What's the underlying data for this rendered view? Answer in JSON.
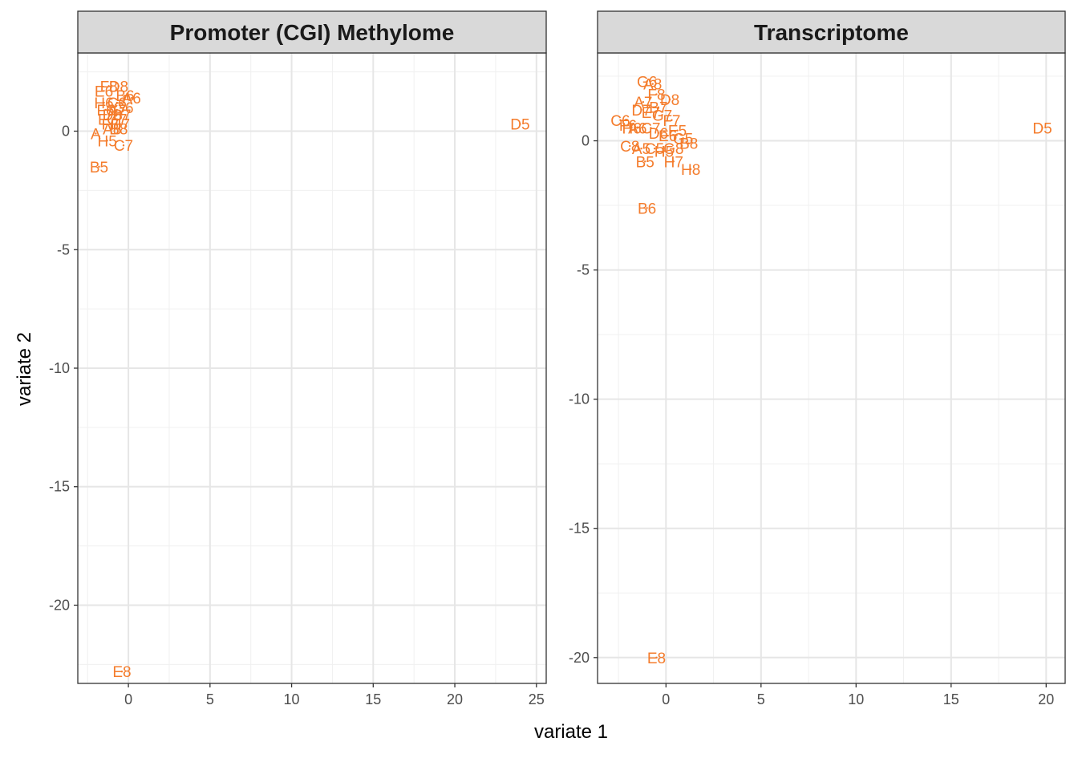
{
  "chart_data": {
    "type": "scatter",
    "xlabel": "variate 1",
    "ylabel": "variate 2",
    "color": "#F47C2C",
    "grid": true,
    "panels": [
      {
        "title": "Promoter (CGI) Methylome",
        "xlim": [
          -3.1,
          25.6
        ],
        "ylim": [
          -23.3,
          3.3
        ],
        "x_ticks": [
          0,
          5,
          10,
          15,
          20,
          25
        ],
        "y_ticks": [
          0,
          -5,
          -10,
          -15,
          -20
        ],
        "points": [
          {
            "label": "D5",
            "x": 24.0,
            "y": 0.3
          },
          {
            "label": "E8",
            "x": -0.4,
            "y": -22.8
          },
          {
            "label": "B5",
            "x": -1.8,
            "y": -1.5
          },
          {
            "label": "A",
            "x": -2.0,
            "y": -0.1
          },
          {
            "label": "H5",
            "x": -1.3,
            "y": -0.4
          },
          {
            "label": "C7",
            "x": -0.3,
            "y": -0.6
          },
          {
            "label": "F8",
            "x": -1.2,
            "y": 1.9
          },
          {
            "label": "D8",
            "x": -0.6,
            "y": 1.9
          },
          {
            "label": "E6",
            "x": -1.5,
            "y": 1.7
          },
          {
            "label": "B6",
            "x": -0.2,
            "y": 1.5
          },
          {
            "label": "A6",
            "x": 0.2,
            "y": 1.4
          },
          {
            "label": "H6",
            "x": -1.5,
            "y": 1.2
          },
          {
            "label": "C6",
            "x": -0.7,
            "y": 1.2
          },
          {
            "label": "G6",
            "x": -0.3,
            "y": 1.0
          },
          {
            "label": "F6",
            "x": -1.4,
            "y": 0.9
          },
          {
            "label": "A7",
            "x": -0.7,
            "y": 0.9
          },
          {
            "label": "D6",
            "x": -1.0,
            "y": 0.7
          },
          {
            "label": "B7",
            "x": -0.4,
            "y": 0.7
          },
          {
            "label": "E7",
            "x": -1.3,
            "y": 0.5
          },
          {
            "label": "G7",
            "x": -0.7,
            "y": 0.5
          },
          {
            "label": "F7",
            "x": -1.1,
            "y": 0.3
          },
          {
            "label": "H7",
            "x": -0.5,
            "y": 0.3
          },
          {
            "label": "A8",
            "x": -1.0,
            "y": 0.1
          },
          {
            "label": "B8",
            "x": -0.6,
            "y": 0.1
          }
        ]
      },
      {
        "title": "Transcriptome",
        "xlim": [
          -3.6,
          21.0
        ],
        "ylim": [
          -21.0,
          3.4
        ],
        "x_ticks": [
          0,
          5,
          10,
          15,
          20
        ],
        "y_ticks": [
          0,
          -5,
          -10,
          -15,
          -20
        ],
        "points": [
          {
            "label": "D5",
            "x": 19.8,
            "y": 0.5
          },
          {
            "label": "E8",
            "x": -0.5,
            "y": -20.0
          },
          {
            "label": "B6",
            "x": -1.0,
            "y": -2.6
          },
          {
            "label": "H8",
            "x": 1.3,
            "y": -1.1
          },
          {
            "label": "B5",
            "x": -1.1,
            "y": -0.8
          },
          {
            "label": "H7",
            "x": 0.4,
            "y": -0.8
          },
          {
            "label": "C6",
            "x": -2.4,
            "y": 0.8
          },
          {
            "label": "G6",
            "x": -1.0,
            "y": 2.3
          },
          {
            "label": "A8",
            "x": -0.7,
            "y": 2.2
          },
          {
            "label": "F8",
            "x": -0.5,
            "y": 1.8
          },
          {
            "label": "D8",
            "x": 0.2,
            "y": 1.6
          },
          {
            "label": "A7",
            "x": -1.2,
            "y": 1.5
          },
          {
            "label": "B7",
            "x": -0.4,
            "y": 1.3
          },
          {
            "label": "D7",
            "x": -1.3,
            "y": 1.2
          },
          {
            "label": "E7",
            "x": -0.8,
            "y": 1.1
          },
          {
            "label": "G7",
            "x": -0.2,
            "y": 1.0
          },
          {
            "label": "F7",
            "x": 0.3,
            "y": 0.8
          },
          {
            "label": "F6",
            "x": -2.0,
            "y": 0.6
          },
          {
            "label": "H6",
            "x": -1.8,
            "y": 0.5
          },
          {
            "label": "A6",
            "x": -1.5,
            "y": 0.5
          },
          {
            "label": "C7",
            "x": -0.8,
            "y": 0.5
          },
          {
            "label": "E5",
            "x": 0.6,
            "y": 0.4
          },
          {
            "label": "D6",
            "x": -0.4,
            "y": 0.3
          },
          {
            "label": "E6",
            "x": 0.1,
            "y": 0.2
          },
          {
            "label": "G5",
            "x": 0.9,
            "y": 0.1
          },
          {
            "label": "B8",
            "x": 1.2,
            "y": -0.1
          },
          {
            "label": "C8",
            "x": -1.9,
            "y": -0.2
          },
          {
            "label": "A5",
            "x": -1.3,
            "y": -0.3
          },
          {
            "label": "C5",
            "x": -0.6,
            "y": -0.3
          },
          {
            "label": "H5",
            "x": -0.1,
            "y": -0.4
          },
          {
            "label": "G8",
            "x": 0.4,
            "y": -0.3
          }
        ]
      }
    ]
  }
}
